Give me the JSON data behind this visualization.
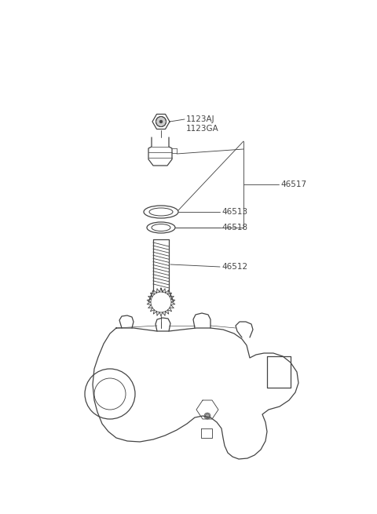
{
  "bg_color": "#ffffff",
  "line_color": "#444444",
  "figsize": [
    4.8,
    6.55
  ],
  "dpi": 100,
  "font_size": 7.5,
  "lw": 0.9
}
